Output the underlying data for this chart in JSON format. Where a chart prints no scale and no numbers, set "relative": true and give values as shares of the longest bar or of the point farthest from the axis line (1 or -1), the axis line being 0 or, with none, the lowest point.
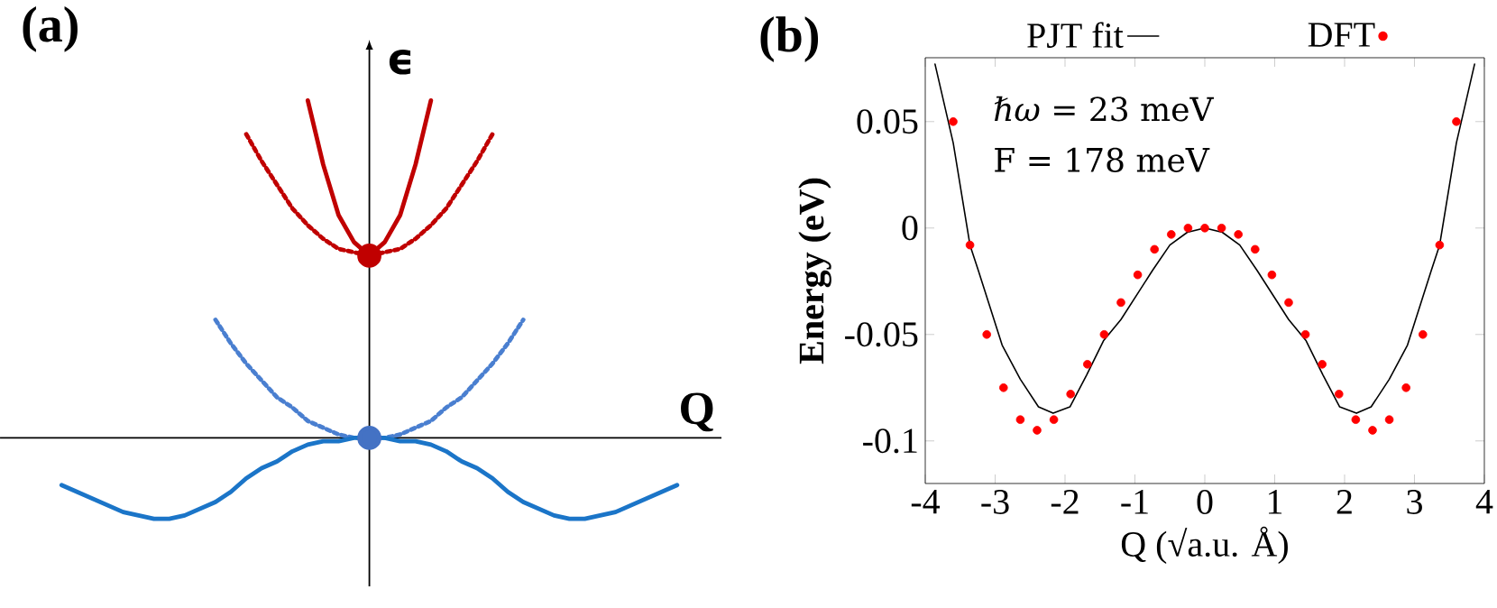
{
  "chart_data": [
    {
      "type": "line",
      "title": "(a)",
      "xlabel": "Q",
      "ylabel": "ϵ",
      "relative": true,
      "categories": [
        null,
        null,
        null,
        null,
        null,
        null,
        null,
        null,
        null,
        null,
        null,
        null,
        null,
        null,
        null,
        null,
        null,
        null,
        null,
        null,
        null,
        null,
        null,
        null,
        null,
        null,
        null,
        null,
        null,
        null,
        null,
        null,
        null,
        null,
        null,
        null,
        null,
        null,
        null,
        null,
        null
      ],
      "series": [
        {
          "color": "#c00000",
          "line_style": "solid",
          "values": [
            null,
            null,
            null,
            null,
            null,
            null,
            null,
            null,
            null,
            null,
            null,
            null,
            null,
            null,
            null,
            null,
            1,
            0.81,
            0.66,
            0.58,
            0.54,
            0.58,
            0.66,
            0.81,
            1,
            null,
            null,
            null,
            null,
            null,
            null,
            null,
            null,
            null,
            null,
            null,
            null,
            null,
            null,
            null,
            null
          ]
        },
        {
          "color": "#c00000",
          "line_style": "dotted",
          "values": [
            null,
            null,
            null,
            null,
            null,
            null,
            null,
            null,
            null,
            null,
            null,
            null,
            0.9,
            0.82,
            0.75,
            0.68,
            0.63,
            0.59,
            0.56,
            0.55,
            0.54,
            0.55,
            0.56,
            0.59,
            0.63,
            0.68,
            0.75,
            0.82,
            0.9,
            null,
            null,
            null,
            null,
            null,
            null,
            null,
            null,
            null,
            null,
            null,
            null
          ]
        },
        {
          "color": "#4a7fd0",
          "line_style": "dotted",
          "values": [
            null,
            null,
            null,
            null,
            null,
            null,
            null,
            null,
            null,
            null,
            0.35,
            0.28,
            0.22,
            0.17,
            0.12,
            0.09,
            0.05,
            0.03,
            0.01,
            0,
            0,
            0,
            0.01,
            0.03,
            0.05,
            0.09,
            0.12,
            0.17,
            0.22,
            0.28,
            0.35,
            null,
            null,
            null,
            null,
            null,
            null,
            null,
            null,
            null,
            null
          ]
        },
        {
          "color": "#1b75c8",
          "line_style": "solid",
          "values": [
            -0.14,
            -0.16,
            -0.18,
            -0.2,
            -0.22,
            -0.23,
            -0.24,
            -0.24,
            -0.23,
            -0.21,
            -0.19,
            -0.16,
            -0.12,
            -0.09,
            -0.07,
            -0.04,
            -0.02,
            -0.01,
            -0.01,
            0,
            0,
            0,
            -0.01,
            -0.01,
            -0.02,
            -0.04,
            -0.07,
            -0.09,
            -0.12,
            -0.16,
            -0.19,
            -0.21,
            -0.23,
            -0.24,
            -0.24,
            -0.23,
            -0.22,
            -0.2,
            -0.18,
            -0.16,
            -0.14
          ]
        },
        {
          "type": "line",
          "color": "#c00000",
          "marker": "circle",
          "values": [
            null,
            null,
            null,
            null,
            null,
            null,
            null,
            null,
            null,
            null,
            null,
            null,
            null,
            null,
            null,
            null,
            null,
            null,
            null,
            null,
            0.54,
            null,
            null,
            null,
            null,
            null,
            null,
            null,
            null,
            null,
            null,
            null,
            null,
            null,
            null,
            null,
            null,
            null,
            null,
            null,
            null
          ]
        },
        {
          "type": "line",
          "color": "#4472c4",
          "marker": "circle",
          "values": [
            null,
            null,
            null,
            null,
            null,
            null,
            null,
            null,
            null,
            null,
            null,
            null,
            null,
            null,
            null,
            null,
            null,
            null,
            null,
            null,
            0,
            null,
            null,
            null,
            null,
            null,
            null,
            null,
            null,
            null,
            null,
            null,
            null,
            null,
            null,
            null,
            null,
            null,
            null,
            null,
            null
          ]
        }
      ]
    },
    {
      "type": "scatter",
      "title": "(b)",
      "xlabel": "Q (√a.u. Å)",
      "ylabel": "Energy (eV)",
      "xlim": [
        -4,
        4
      ],
      "ylim": [
        -0.12,
        0.08
      ],
      "xticks": [
        -4,
        -3,
        -2,
        -1,
        0,
        1,
        2,
        3,
        4
      ],
      "yticks": [
        -0.1,
        -0.05,
        0,
        0.05
      ],
      "legend": "top",
      "annotations": [
        "*ℏω* = 23 meV",
        "F = 178 meV"
      ],
      "series": [
        {
          "name": "PJT fit",
          "type": "line",
          "color": "#000000",
          "x": [
            -3.86,
            -3.6,
            -3.36,
            -3.24,
            -2.9,
            -2.64,
            -2.38,
            -2.17,
            -1.93,
            -1.69,
            -1.45,
            -1.2,
            -0.75,
            -0.5,
            -0.25,
            0,
            0.25,
            0.5,
            0.75,
            1.2,
            1.45,
            1.69,
            1.93,
            2.17,
            2.38,
            2.64,
            2.9,
            3.24,
            3.36,
            3.6,
            3.86
          ],
          "values": [
            0.077,
            0.04,
            -0.008,
            -0.02,
            -0.055,
            -0.071,
            -0.084,
            -0.087,
            -0.084,
            -0.069,
            -0.053,
            -0.043,
            -0.02,
            -0.008,
            -0.002,
            0,
            -0.002,
            -0.008,
            -0.02,
            -0.043,
            -0.053,
            -0.069,
            -0.084,
            -0.087,
            -0.084,
            -0.071,
            -0.055,
            -0.02,
            -0.008,
            0.04,
            0.077
          ]
        },
        {
          "name": "DFT",
          "type": "scatter",
          "color": "#ff0000",
          "marker": "circle",
          "x": [
            -3.6,
            -3.36,
            -3.12,
            -2.88,
            -2.64,
            -2.4,
            -2.16,
            -1.92,
            -1.68,
            -1.44,
            -1.2,
            -0.96,
            -0.72,
            -0.48,
            -0.24,
            0,
            0.24,
            0.48,
            0.72,
            0.96,
            1.2,
            1.44,
            1.68,
            1.92,
            2.16,
            2.4,
            2.64,
            2.88,
            3.12,
            3.36,
            3.6
          ],
          "values": [
            0.05,
            -0.008,
            -0.05,
            -0.075,
            -0.09,
            -0.095,
            -0.09,
            -0.078,
            -0.064,
            -0.05,
            -0.035,
            -0.022,
            -0.01,
            -0.003,
            0,
            0,
            0,
            -0.003,
            -0.01,
            -0.022,
            -0.035,
            -0.05,
            -0.064,
            -0.078,
            -0.09,
            -0.095,
            -0.09,
            -0.075,
            -0.05,
            -0.008,
            0.05
          ]
        }
      ]
    }
  ]
}
